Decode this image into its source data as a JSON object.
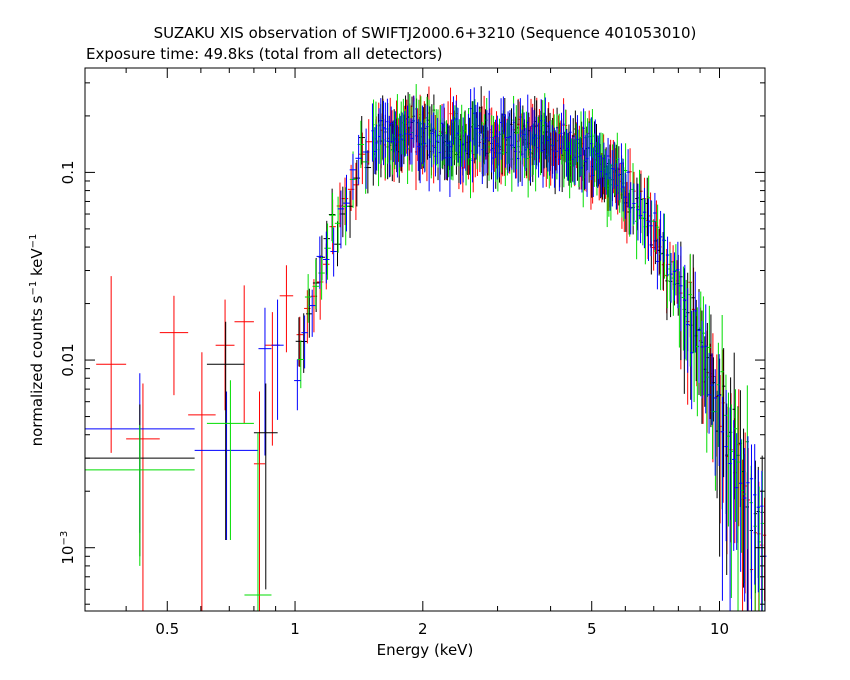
{
  "chart_data": {
    "type": "scatter",
    "title": "SUZAKU XIS observation of SWIFTJ2000.6+3210 (Sequence 401053010)",
    "subtitle": "Exposure time: 49.8ks (total from all detectors)",
    "xlabel": "Energy (keV)",
    "ylabel_main": "normalized counts s",
    "ylabel_sup1": "−1",
    "ylabel_mid": " keV",
    "ylabel_sup2": "−1",
    "x_scale": "log",
    "y_scale": "log",
    "xlim": [
      0.32,
      12.8
    ],
    "ylim": [
      0.00046,
      0.36
    ],
    "grid": false,
    "legend": "none",
    "x_ticks": [
      {
        "value": 0.5,
        "label": "0.5"
      },
      {
        "value": 1,
        "label": "1"
      },
      {
        "value": 2,
        "label": "2"
      },
      {
        "value": 5,
        "label": "5"
      },
      {
        "value": 10,
        "label": "10"
      }
    ],
    "x_minor_ticks": [
      0.4,
      0.6,
      0.7,
      0.8,
      0.9,
      3,
      4,
      6,
      7,
      8,
      9
    ],
    "y_ticks": [
      {
        "value": 0.1,
        "label": "0.1"
      },
      {
        "value": 0.01,
        "label": "0.01"
      },
      {
        "value": 0.001,
        "label_base": "10",
        "label_exp": "−3"
      }
    ],
    "series_colors": [
      "#000000",
      "#ff0000",
      "#00dd00",
      "#0000ff"
    ],
    "low_energy_points": [
      {
        "color": "#ff0000",
        "x": [
          0.34,
          0.4
        ],
        "y": 0.0095,
        "yerr": [
          0.0032,
          0.028
        ]
      },
      {
        "color": "#ff0000",
        "x": [
          0.4,
          0.48
        ],
        "y": 0.0038,
        "yerr": [
          0.00046,
          0.0075
        ]
      },
      {
        "color": "#ff0000",
        "x": [
          0.48,
          0.56
        ],
        "y": 0.014,
        "yerr": [
          0.0065,
          0.022
        ]
      },
      {
        "color": "#ff0000",
        "x": [
          0.56,
          0.65
        ],
        "y": 0.0051,
        "yerr": [
          0.00046,
          0.011
        ]
      },
      {
        "color": "#ff0000",
        "x": [
          0.65,
          0.72
        ],
        "y": 0.012,
        "yerr": [
          0.0054,
          0.021
        ]
      },
      {
        "color": "#ff0000",
        "x": [
          0.72,
          0.8
        ],
        "y": 0.016,
        "yerr": [
          0.0046,
          0.025
        ]
      },
      {
        "color": "#ff0000",
        "x": [
          0.8,
          0.85
        ],
        "y": 0.0028,
        "yerr": [
          0.00046,
          0.0068
        ]
      },
      {
        "color": "#ff0000",
        "x": [
          0.85,
          0.92
        ],
        "y": 0.012,
        "yerr": [
          0.0035,
          0.018
        ]
      },
      {
        "color": "#ff0000",
        "x": [
          0.92,
          0.99
        ],
        "y": 0.022,
        "yerr": [
          0.011,
          0.032
        ]
      },
      {
        "color": "#0000ff",
        "x": [
          0.32,
          0.58
        ],
        "y": 0.0043,
        "yerr": [
          0.0012,
          0.0085
        ]
      },
      {
        "color": "#0000ff",
        "x": [
          0.58,
          0.82
        ],
        "y": 0.0033,
        "yerr": [
          0.0011,
          0.0068
        ]
      },
      {
        "color": "#0000ff",
        "x": [
          0.82,
          0.88
        ],
        "y": 0.0115,
        "yerr": [
          0.0031,
          0.019
        ]
      },
      {
        "color": "#0000ff",
        "x": [
          0.88,
          0.94
        ],
        "y": 0.012,
        "yerr": [
          0.0048,
          0.021
        ]
      },
      {
        "color": "#000000",
        "x": [
          0.32,
          0.58
        ],
        "y": 0.003,
        "yerr": [
          0.0009,
          0.0058
        ]
      },
      {
        "color": "#000000",
        "x": [
          0.62,
          0.76
        ],
        "y": 0.0095,
        "yerr": [
          0.0011,
          0.016
        ]
      },
      {
        "color": "#000000",
        "x": [
          0.8,
          0.91
        ],
        "y": 0.0041,
        "yerr": [
          0.0006,
          0.0075
        ]
      },
      {
        "color": "#00dd00",
        "x": [
          0.32,
          0.58
        ],
        "y": 0.0026,
        "yerr": [
          0.0008,
          0.0045
        ]
      },
      {
        "color": "#00dd00",
        "x": [
          0.62,
          0.8
        ],
        "y": 0.0046,
        "yerr": [
          0.0011,
          0.0078
        ]
      },
      {
        "color": "#00dd00",
        "x": [
          0.76,
          0.88
        ],
        "y": 0.00056,
        "yerr": [
          0.00046,
          0.0041
        ]
      }
    ],
    "spectrum_trend": {
      "energy_keV": [
        1.0,
        1.2,
        1.4,
        1.6,
        1.8,
        2.0,
        2.5,
        3.0,
        4.0,
        5.0,
        6.0,
        7.0,
        8.0,
        9.0,
        10.0,
        11.0,
        12.0,
        12.8
      ],
      "counts": [
        0.0095,
        0.04,
        0.11,
        0.16,
        0.165,
        0.16,
        0.15,
        0.15,
        0.15,
        0.13,
        0.085,
        0.05,
        0.025,
        0.012,
        0.006,
        0.003,
        0.0017,
        0.0012
      ]
    }
  }
}
